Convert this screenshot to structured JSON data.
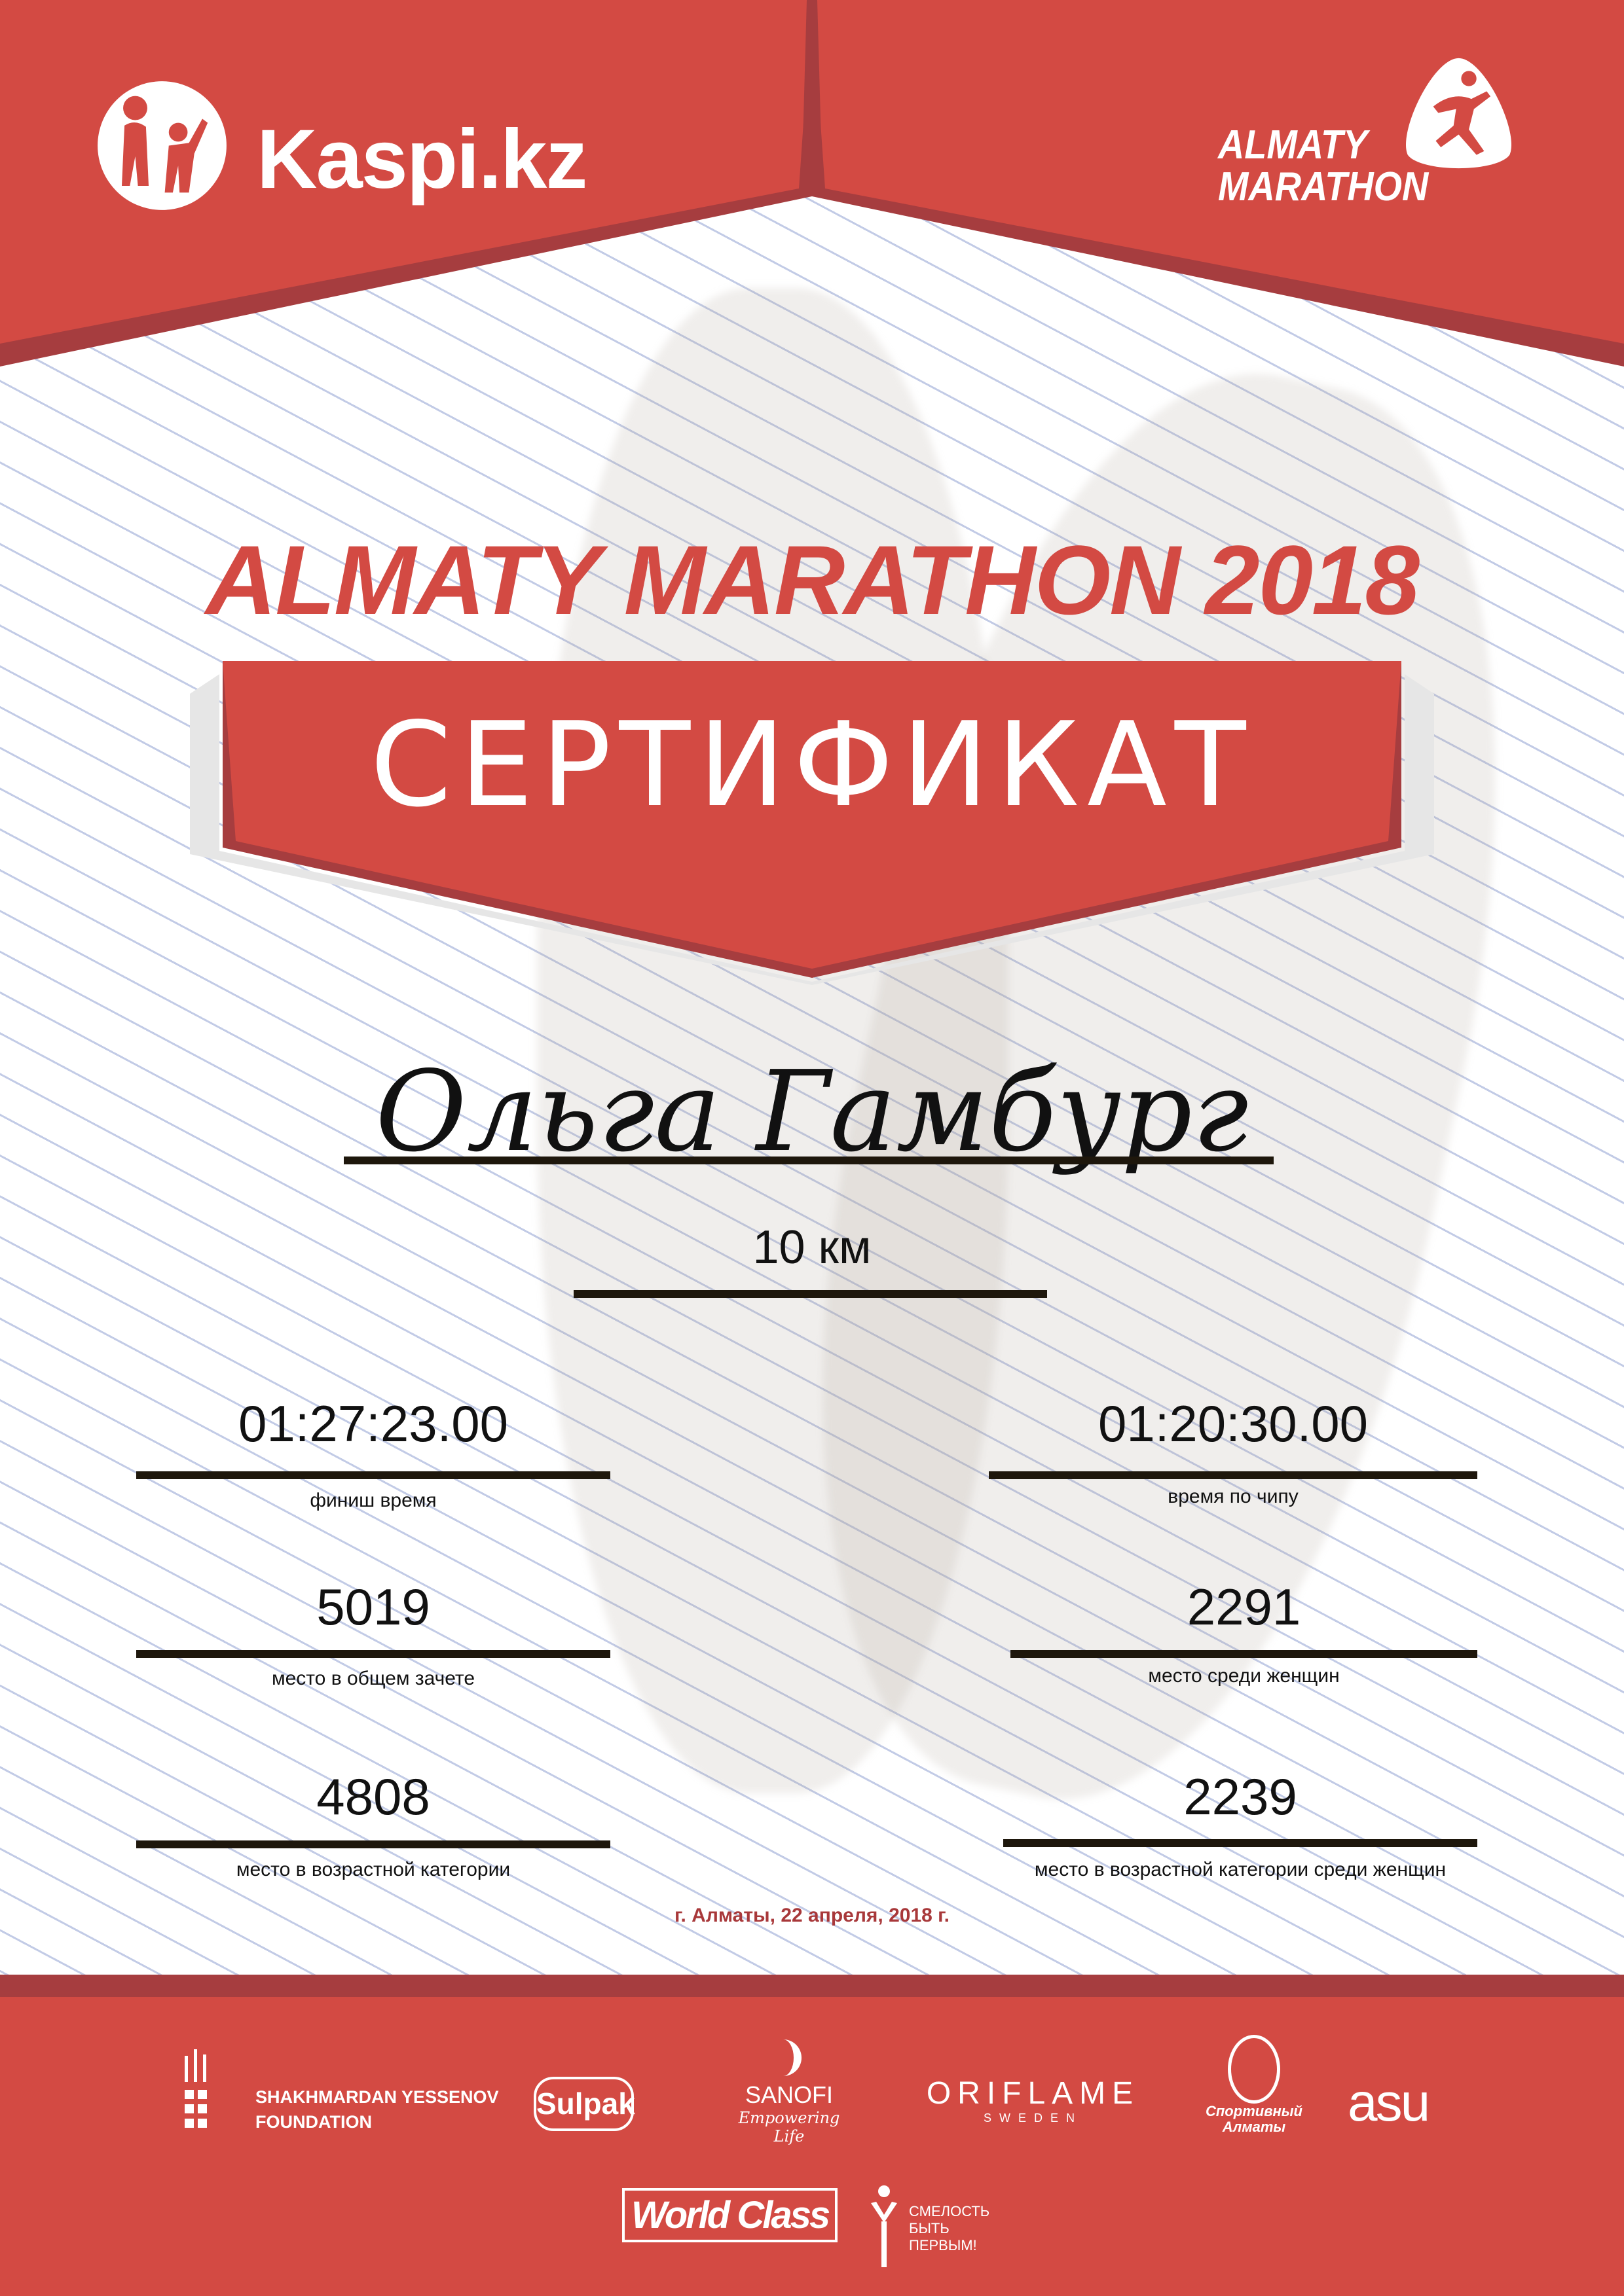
{
  "colors": {
    "brand_red": "#d34a43",
    "dark_red": "#a63d3f",
    "date_text": "#a8383a"
  },
  "header": {
    "sponsor_logo": {
      "text": "Kaspi.kz",
      "icon": "kaspi-people-icon"
    },
    "event_logo": {
      "line1": "ALMATY",
      "line2": "MARATHON",
      "icon": "runner-drop-icon"
    }
  },
  "headline": "ALMATY MARATHON 2018",
  "certificate_title": "СЕРТИФИКАТ",
  "participant_name": "Ольга Гамбург",
  "distance": "10 км",
  "results": {
    "finish_time": {
      "value": "01:27:23.00",
      "label": "финиш время"
    },
    "chip_time": {
      "value": "01:20:30.00",
      "label": "время по чипу"
    },
    "overall_place": {
      "value": "5019",
      "label": "место в общем зачете"
    },
    "women_place": {
      "value": "2291",
      "label": "место среди женщин"
    },
    "age_group_place": {
      "value": "4808",
      "label": "место в возрастной категории"
    },
    "women_age_group_place": {
      "value": "2239",
      "label": "место в возрастной категории среди женщин"
    }
  },
  "date_line": "г. Алматы, 22 апреля, 2018 г.",
  "footer": {
    "partners": [
      {
        "line1": "SHAKHMARDAN YESSENOV",
        "line2": "FOUNDATION"
      },
      {
        "name": "Sulpak"
      },
      {
        "name": "SANOFI",
        "tagline": "Empowering Life"
      },
      {
        "name": "ORIFLAME",
        "tagline": "SWEDEN"
      },
      {
        "name": "Спортивный Алматы"
      },
      {
        "name": "asu"
      },
      {
        "name": "World Class"
      },
      {
        "line1": "СМЕЛОСТЬ",
        "line2": "БЫТЬ",
        "line3": "ПЕРВЫМ!"
      }
    ]
  }
}
